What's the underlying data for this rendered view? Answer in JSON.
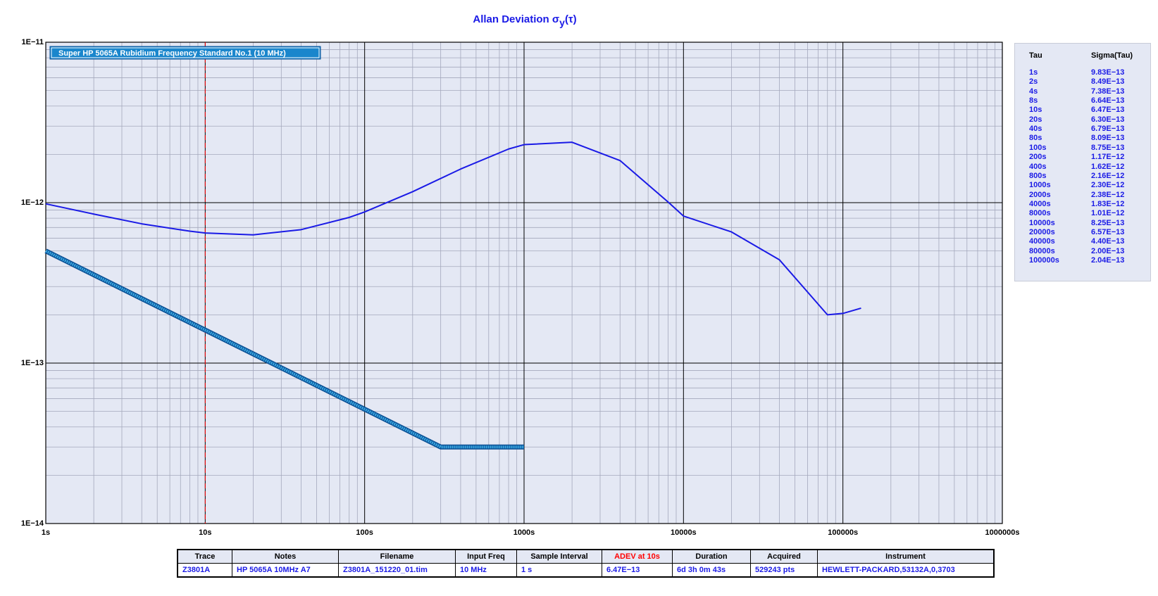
{
  "chart_data": {
    "type": "line",
    "title": {
      "main": "Allan Deviation σ",
      "sub": "y",
      "tail": "(τ)"
    },
    "xscale": "log",
    "yscale": "log",
    "grid": true,
    "xlim": [
      1,
      1000000
    ],
    "ylim": [
      1e-14,
      1e-11
    ],
    "xticks": [
      {
        "value": 1,
        "label": "1s"
      },
      {
        "value": 10,
        "label": "10s"
      },
      {
        "value": 100,
        "label": "100s"
      },
      {
        "value": 1000,
        "label": "1000s"
      },
      {
        "value": 10000,
        "label": "10000s"
      },
      {
        "value": 100000,
        "label": "100000s"
      },
      {
        "value": 1000000,
        "label": "1000000s"
      }
    ],
    "yticks": [
      {
        "value": 1e-14,
        "label": "1E−14"
      },
      {
        "value": 1e-13,
        "label": "1E−13"
      },
      {
        "value": 1e-12,
        "label": "1E−12"
      },
      {
        "value": 1e-11,
        "label": "1E−11"
      }
    ],
    "xminorticks": [
      2,
      3,
      4,
      5,
      6,
      7,
      8,
      9,
      20,
      30,
      40,
      50,
      60,
      70,
      80,
      90,
      200,
      300,
      400,
      500,
      600,
      700,
      800,
      900,
      2000,
      3000,
      4000,
      5000,
      6000,
      7000,
      8000,
      9000,
      20000,
      30000,
      40000,
      50000,
      60000,
      70000,
      80000,
      90000,
      200000,
      300000,
      400000,
      500000,
      600000,
      700000,
      800000,
      900000
    ],
    "yminorticks": [
      2e-14,
      3e-14,
      4e-14,
      5e-14,
      6e-14,
      7e-14,
      8e-14,
      9e-14,
      2e-13,
      3e-13,
      4e-13,
      5e-13,
      6e-13,
      7e-13,
      8e-13,
      9e-13,
      2e-12,
      3e-12,
      4e-12,
      5e-12,
      6e-12,
      7e-12,
      8e-12,
      9e-12
    ],
    "marker_x": 10,
    "marker_color": "#ff0000",
    "legend": "top-left",
    "series": [
      {
        "name": "Super HP 5065A Rubidium Frequency Standard No.1 (10 MHz)",
        "color": "#1a1ae6",
        "x": [
          1,
          2,
          4,
          8,
          10,
          20,
          40,
          80,
          100,
          200,
          400,
          800,
          1000,
          2000,
          4000,
          8000,
          10000,
          20000,
          40000,
          80000,
          100000,
          130000
        ],
        "values": [
          9.83e-13,
          8.49e-13,
          7.38e-13,
          6.64e-13,
          6.47e-13,
          6.3e-13,
          6.79e-13,
          8.09e-13,
          8.75e-13,
          1.17e-12,
          1.62e-12,
          2.16e-12,
          2.3e-12,
          2.38e-12,
          1.83e-12,
          1.01e-12,
          8.25e-13,
          6.57e-13,
          4.4e-13,
          2e-13,
          2.04e-13,
          2.2e-13
        ]
      },
      {
        "color": "#3aa6e0",
        "x": [
          1,
          300,
          1000
        ],
        "values": [
          5e-13,
          3e-14,
          3e-14
        ]
      }
    ]
  },
  "sidebar_table": {
    "headers": [
      "Tau",
      "Sigma(Tau)"
    ],
    "rows": [
      [
        "1s",
        "9.83E−13"
      ],
      [
        "2s",
        "8.49E−13"
      ],
      [
        "4s",
        "7.38E−13"
      ],
      [
        "8s",
        "6.64E−13"
      ],
      [
        "10s",
        "6.47E−13"
      ],
      [
        "20s",
        "6.30E−13"
      ],
      [
        "40s",
        "6.79E−13"
      ],
      [
        "80s",
        "8.09E−13"
      ],
      [
        "100s",
        "8.75E−13"
      ],
      [
        "200s",
        "1.17E−12"
      ],
      [
        "400s",
        "1.62E−12"
      ],
      [
        "800s",
        "2.16E−12"
      ],
      [
        "1000s",
        "2.30E−12"
      ],
      [
        "2000s",
        "2.38E−12"
      ],
      [
        "4000s",
        "1.83E−12"
      ],
      [
        "8000s",
        "1.01E−12"
      ],
      [
        "10000s",
        "8.25E−13"
      ],
      [
        "20000s",
        "6.57E−13"
      ],
      [
        "40000s",
        "4.40E−13"
      ],
      [
        "80000s",
        "2.00E−13"
      ],
      [
        "100000s",
        "2.04E−13"
      ]
    ]
  },
  "info_table": {
    "headers": [
      "Trace",
      "Notes",
      "Filename",
      "Input Freq",
      "Sample Interval",
      "ADEV at 10s",
      "Duration",
      "Acquired",
      "Instrument"
    ],
    "highlight_column": 5,
    "highlight_color": "#ff0000",
    "rows": [
      [
        "Z3801A",
        "HP 5065A 10MHz A7",
        "Z3801A_151220_01.tim",
        "10 MHz",
        "1 s",
        "6.47E−13",
        "6d 3h 0m 43s",
        "529243 pts",
        "HEWLETT-PACKARD,53132A,0,3703"
      ]
    ]
  }
}
